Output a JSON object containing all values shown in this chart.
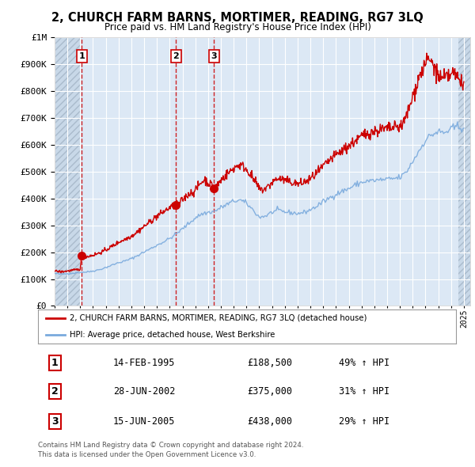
{
  "title": "2, CHURCH FARM BARNS, MORTIMER, READING, RG7 3LQ",
  "subtitle": "Price paid vs. HM Land Registry's House Price Index (HPI)",
  "legend_line1": "2, CHURCH FARM BARNS, MORTIMER, READING, RG7 3LQ (detached house)",
  "legend_line2": "HPI: Average price, detached house, West Berkshire",
  "footer1": "Contains HM Land Registry data © Crown copyright and database right 2024.",
  "footer2": "This data is licensed under the Open Government Licence v3.0.",
  "transactions": [
    {
      "num": 1,
      "date": "14-FEB-1995",
      "price": 188500,
      "hpi_pct": "49% ↑ HPI",
      "x_year": 1995.12
    },
    {
      "num": 2,
      "date": "28-JUN-2002",
      "price": 375000,
      "hpi_pct": "31% ↑ HPI",
      "x_year": 2002.49
    },
    {
      "num": 3,
      "date": "15-JUN-2005",
      "price": 438000,
      "hpi_pct": "29% ↑ HPI",
      "x_year": 2005.46
    }
  ],
  "hpi_color": "#7aaadd",
  "price_color": "#cc0000",
  "dashed_color": "#cc0000",
  "background_color": "#dce8f5",
  "hatch_area_color": "#c8d8e8",
  "grid_color": "#ffffff",
  "ylim": [
    0,
    1000000
  ],
  "xlim_start": 1993.0,
  "xlim_end": 2025.5
}
